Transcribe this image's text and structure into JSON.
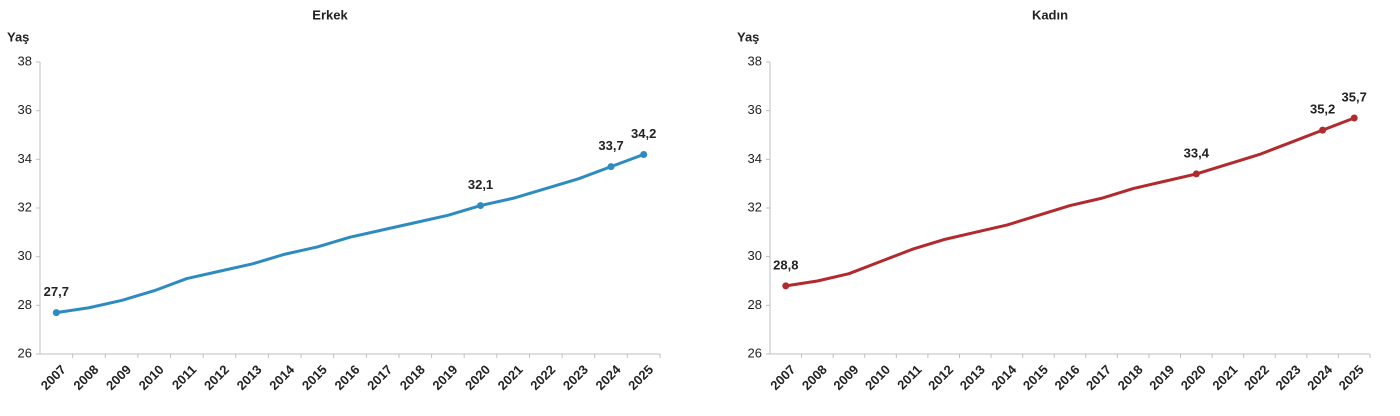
{
  "chart_data": [
    {
      "type": "line",
      "title": "Erkek",
      "ylabel": "Yaş",
      "categories": [
        "2007",
        "2008",
        "2009",
        "2010",
        "2011",
        "2012",
        "2013",
        "2014",
        "2015",
        "2016",
        "2017",
        "2018",
        "2019",
        "2020",
        "2021",
        "2022",
        "2023",
        "2024",
        "2025"
      ],
      "values": [
        27.7,
        27.9,
        28.2,
        28.6,
        29.1,
        29.4,
        29.7,
        30.1,
        30.4,
        30.8,
        31.1,
        31.4,
        31.7,
        32.1,
        32.4,
        32.8,
        33.2,
        33.7,
        34.2
      ],
      "value_labels": [
        "27,7",
        null,
        null,
        null,
        null,
        null,
        null,
        null,
        null,
        null,
        null,
        null,
        null,
        "32,1",
        null,
        null,
        null,
        "33,7",
        "34,2"
      ],
      "color": "#2e8bc0",
      "ylim": [
        26,
        38
      ],
      "yticks": [
        26,
        28,
        30,
        32,
        34,
        36,
        38
      ]
    },
    {
      "type": "line",
      "title": "Kadın",
      "ylabel": "Yaş",
      "categories": [
        "2007",
        "2008",
        "2009",
        "2010",
        "2011",
        "2012",
        "2013",
        "2014",
        "2015",
        "2016",
        "2017",
        "2018",
        "2019",
        "2020",
        "2021",
        "2022",
        "2023",
        "2024",
        "2025"
      ],
      "values": [
        28.8,
        29.0,
        29.3,
        29.8,
        30.3,
        30.7,
        31.0,
        31.3,
        31.7,
        32.1,
        32.4,
        32.8,
        33.1,
        33.4,
        33.8,
        34.2,
        34.7,
        35.2,
        35.7
      ],
      "value_labels": [
        "28,8",
        null,
        null,
        null,
        null,
        null,
        null,
        null,
        null,
        null,
        null,
        null,
        null,
        "33,4",
        null,
        null,
        null,
        "35,2",
        "35,7"
      ],
      "color": "#b02a2e",
      "ylim": [
        26,
        38
      ],
      "yticks": [
        26,
        28,
        30,
        32,
        34,
        36,
        38
      ]
    }
  ]
}
